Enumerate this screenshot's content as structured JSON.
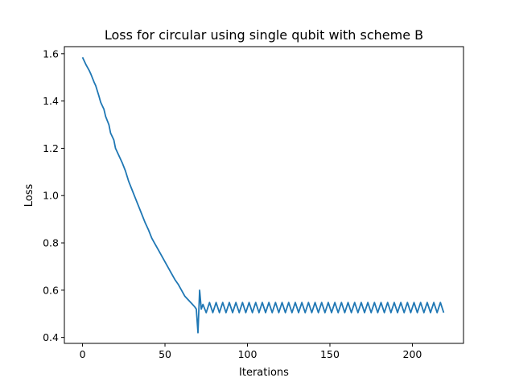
{
  "chart_data": {
    "type": "line",
    "title": "Loss for circular using single qubit with scheme B",
    "xlabel": "Iterations",
    "ylabel": "Loss",
    "xlim": [
      -11,
      231
    ],
    "ylim": [
      0.375,
      1.63
    ],
    "grid": false,
    "legend": "none",
    "xticks": [
      {
        "value": 0,
        "label": "0"
      },
      {
        "value": 50,
        "label": "50"
      },
      {
        "value": 100,
        "label": "100"
      },
      {
        "value": 150,
        "label": "150"
      },
      {
        "value": 200,
        "label": "200"
      }
    ],
    "yticks": [
      {
        "value": 0.4,
        "label": "0.4"
      },
      {
        "value": 0.6,
        "label": "0.6"
      },
      {
        "value": 0.8,
        "label": "0.8"
      },
      {
        "value": 1.0,
        "label": "1.0"
      },
      {
        "value": 1.2,
        "label": "1.2"
      },
      {
        "value": 1.4,
        "label": "1.4"
      },
      {
        "value": 1.6,
        "label": "1.6"
      }
    ],
    "series": [
      {
        "color": "#1f77b4",
        "x": [
          0,
          2,
          4,
          5,
          7,
          8,
          10,
          11,
          13,
          14,
          16,
          17,
          19,
          20,
          22,
          24,
          26,
          28,
          30,
          32,
          34,
          36,
          38,
          40,
          42,
          44,
          46,
          48,
          50,
          52,
          54,
          56,
          58,
          60,
          62,
          64,
          66,
          68,
          69,
          70,
          71,
          72,
          73
        ],
        "values": [
          1.585,
          1.555,
          1.53,
          1.515,
          1.48,
          1.465,
          1.42,
          1.395,
          1.365,
          1.335,
          1.3,
          1.265,
          1.235,
          1.2,
          1.17,
          1.14,
          1.105,
          1.06,
          1.025,
          0.99,
          0.955,
          0.92,
          0.885,
          0.855,
          0.82,
          0.795,
          0.77,
          0.745,
          0.72,
          0.695,
          0.67,
          0.645,
          0.625,
          0.6,
          0.575,
          0.56,
          0.545,
          0.53,
          0.52,
          0.42,
          0.6,
          0.52,
          0.54
        ],
        "oscillation": {
          "x_start": 73,
          "x_end": 219,
          "high": 0.548,
          "low": 0.505,
          "step": 2
        }
      }
    ]
  }
}
